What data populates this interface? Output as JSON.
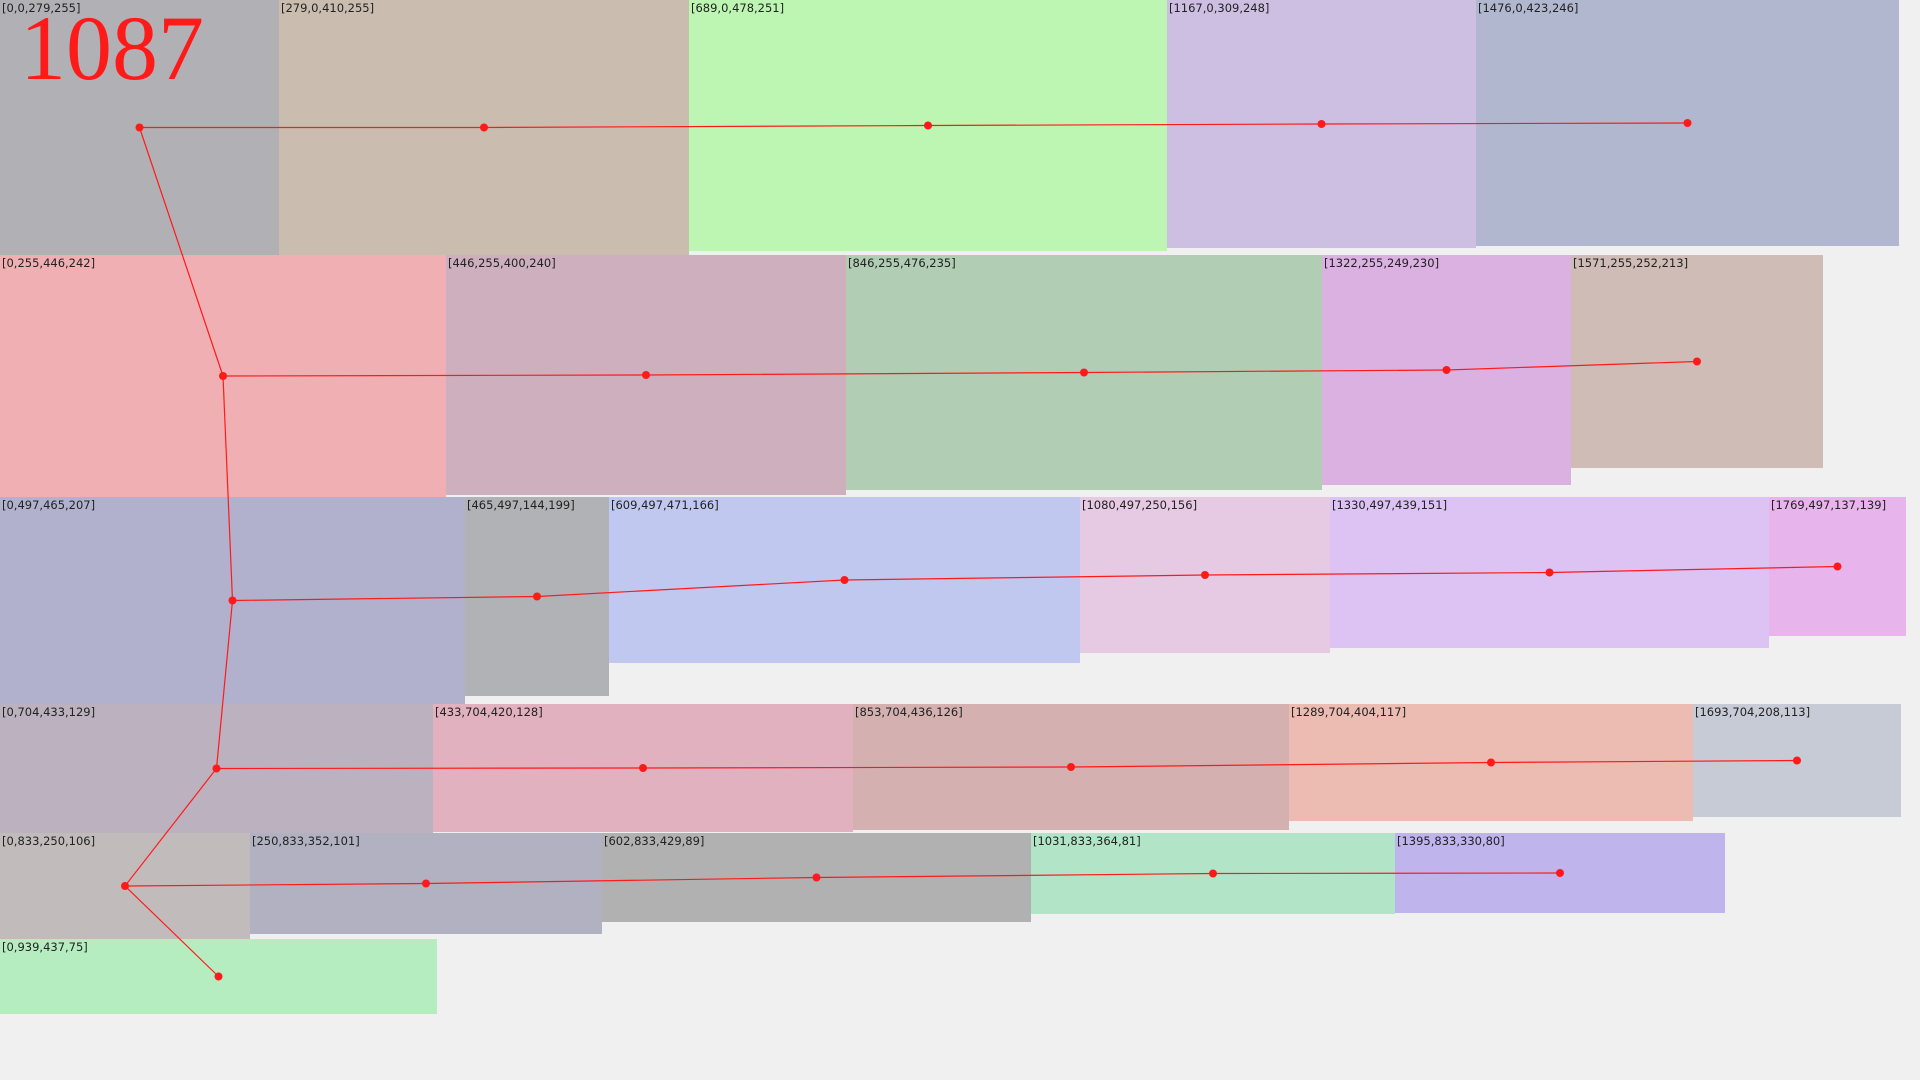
{
  "title": "1087",
  "line_color": "#ff1a1a",
  "boxes": [
    {
      "label": "[0,0,279,255]",
      "color": "#b1b1b5"
    },
    {
      "label": "[279,0,410,255]",
      "color": "#cbbcb0"
    },
    {
      "label": "[689,0,478,251]",
      "color": "#bdf5b2"
    },
    {
      "label": "[1167,0,309,248]",
      "color": "#cdbfe2"
    },
    {
      "label": "[1476,0,423,246]",
      "color": "#b1b7cf"
    },
    {
      "label": "[0,255,446,242]",
      "color": "#f0b0b3"
    },
    {
      "label": "[446,255,400,240]",
      "color": "#cdafbd"
    },
    {
      "label": "[846,255,476,235]",
      "color": "#b1cdb3"
    },
    {
      "label": "[1322,255,249,230]",
      "color": "#dbb1e2"
    },
    {
      "label": "[1571,255,252,213]",
      "color": "#d0bcb6"
    },
    {
      "label": "[0,497,465,207]",
      "color": "#b1b1cd"
    },
    {
      "label": "[465,497,144,199]",
      "color": "#b1b2b5"
    },
    {
      "label": "[609,497,471,166]",
      "color": "#c1c8ef"
    },
    {
      "label": "[1080,497,250,156]",
      "color": "#e6c9e3"
    },
    {
      "label": "[1330,497,439,151]",
      "color": "#dcc3f3"
    },
    {
      "label": "[1769,497,137,139]",
      "color": "#e8b4ec"
    },
    {
      "label": "[0,704,433,129]",
      "color": "#bbb1bf"
    },
    {
      "label": "[433,704,420,128]",
      "color": "#e1b1c0"
    },
    {
      "label": "[853,704,436,126]",
      "color": "#d4b0b1"
    },
    {
      "label": "[1289,704,404,117]",
      "color": "#ecbbb1"
    },
    {
      "label": "[1693,704,208,113]",
      "color": "#c7cbd6"
    },
    {
      "label": "[0,833,250,106]",
      "color": "#c1bcbb"
    },
    {
      "label": "[250,833,352,101]",
      "color": "#b1b1c1"
    },
    {
      "label": "[602,833,429,89]",
      "color": "#b1b1b1"
    },
    {
      "label": "[1031,833,364,81]",
      "color": "#b2e5c8"
    },
    {
      "label": "[1395,833,330,80]",
      "color": "#bfb5ec"
    },
    {
      "label": "[0,939,437,75]",
      "color": "#b5edc1"
    }
  ]
}
